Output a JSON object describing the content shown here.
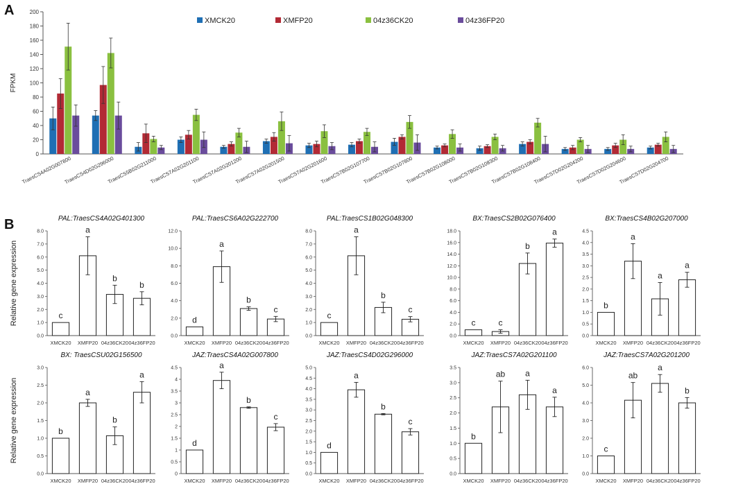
{
  "panels": {
    "a": "A",
    "b": "B"
  },
  "chart_data": [
    {
      "type": "bar",
      "ylabel": "FPKM",
      "ylim": [
        0,
        200
      ],
      "yticks": [
        0,
        20,
        40,
        60,
        80,
        100,
        120,
        140,
        160,
        180,
        200
      ],
      "legend_position": "top",
      "categories": [
        "TraesCS4A02G007800",
        "TraesCS4D02G296000",
        "TraesCS5B02G211000",
        "TraesCS7A02G201100",
        "TraesCS7A02G201200",
        "TraesCS7A02G201500",
        "TraesCS7A02G201600",
        "TraesCS7B02G107700",
        "TraesCS7B02G107800",
        "TraesCS7B02G108000",
        "TraesCS7B02G108300",
        "TraesCS7B02G108400",
        "TraesCS7D02G204200",
        "TraesCS7D02G204600",
        "TraesCS7D02G204700"
      ],
      "series": [
        {
          "name": "XMCK20",
          "color": "#1f6fb4",
          "values": [
            50,
            54,
            10,
            20,
            10,
            18,
            12,
            13,
            17,
            9,
            8,
            14,
            7,
            7,
            9
          ],
          "errors": [
            16,
            7,
            6,
            4,
            2,
            3,
            3,
            3,
            5,
            2,
            3,
            3,
            2,
            2,
            2
          ]
        },
        {
          "name": "XMFP20",
          "color": "#b22a35",
          "values": [
            85,
            97,
            29,
            27,
            14,
            24,
            14,
            18,
            24,
            12,
            11,
            17,
            9,
            12,
            13
          ],
          "errors": [
            21,
            26,
            13,
            6,
            3,
            6,
            4,
            3,
            3,
            2,
            2,
            3,
            3,
            3,
            2
          ]
        },
        {
          "name": "04z36CK20",
          "color": "#8ac040",
          "values": [
            151,
            142,
            21,
            55,
            30,
            46,
            32,
            31,
            45,
            28,
            24,
            44,
            20,
            20,
            24
          ],
          "errors": [
            33,
            21,
            4,
            8,
            6,
            13,
            9,
            5,
            9,
            6,
            4,
            6,
            3,
            7,
            7
          ]
        },
        {
          "name": "04z36FP20",
          "color": "#6a4c9c",
          "values": [
            54,
            54,
            9,
            20,
            10,
            15,
            11,
            10,
            16,
            9,
            8,
            14,
            7,
            7,
            7
          ],
          "errors": [
            15,
            19,
            3,
            11,
            8,
            11,
            5,
            7,
            11,
            5,
            4,
            11,
            5,
            4,
            5
          ]
        }
      ]
    },
    {
      "type": "bar",
      "title": "PAL:TraesCS4A02G401300",
      "ylabel": "Relative gene expression",
      "ylim": [
        0,
        8
      ],
      "yticks": [
        "0.0",
        "1.0",
        "2.0",
        "3.0",
        "4.0",
        "5.0",
        "6.0",
        "7.0",
        "8.0"
      ],
      "categories": [
        "XMCK20",
        "XMFP20",
        "04z36CK20",
        "04z36FP20"
      ],
      "values": [
        1.0,
        6.1,
        3.15,
        2.85
      ],
      "errors": [
        0,
        1.45,
        0.7,
        0.5
      ],
      "letters": [
        "c",
        "a",
        "b",
        "b"
      ]
    },
    {
      "type": "bar",
      "title": "PAL:TraesCS6A02G222700",
      "ylim": [
        0,
        12
      ],
      "yticks": [
        "0.0",
        "2.0",
        "4.0",
        "6.0",
        "8.0",
        "10.0",
        "12.0"
      ],
      "categories": [
        "XMCK20",
        "XMFP20",
        "04z36CK20",
        "04z36FP20"
      ],
      "values": [
        1.0,
        7.9,
        3.1,
        1.9
      ],
      "errors": [
        0,
        1.8,
        0.2,
        0.3
      ],
      "letters": [
        "d",
        "a",
        "b",
        "c"
      ]
    },
    {
      "type": "bar",
      "title": "PAL:TraesCS1B02G048300",
      "ylim": [
        0,
        8
      ],
      "yticks": [
        "0.0",
        "1.0",
        "2.0",
        "3.0",
        "4.0",
        "5.0",
        "6.0",
        "7.0",
        "8.0"
      ],
      "categories": [
        "XMCK20",
        "XMFP20",
        "04z36CK20",
        "04z36FP20"
      ],
      "values": [
        1.0,
        6.1,
        2.15,
        1.25
      ],
      "errors": [
        0,
        1.45,
        0.4,
        0.2
      ],
      "letters": [
        "c",
        "a",
        "b",
        "c"
      ]
    },
    {
      "type": "bar",
      "title": "BX:TraesCS2B02G076400",
      "ylim": [
        0,
        18
      ],
      "yticks": [
        "0.0",
        "2.0",
        "4.0",
        "6.0",
        "8.0",
        "10.0",
        "12.0",
        "14.0",
        "16.0",
        "18.0"
      ],
      "categories": [
        "XMCK20",
        "XMFP20",
        "04z36CK20",
        "04z36FP20"
      ],
      "values": [
        1.0,
        0.7,
        12.4,
        15.9
      ],
      "errors": [
        0,
        0.3,
        1.8,
        0.7
      ],
      "letters": [
        "c",
        "c",
        "b",
        "a"
      ]
    },
    {
      "type": "bar",
      "title": "BX:TraesCS4B02G207000",
      "ylim": [
        0,
        4.5
      ],
      "yticks": [
        "0.0",
        "0.5",
        "1.0",
        "1.5",
        "2.0",
        "2.5",
        "3.0",
        "3.5",
        "4.0",
        "4.5"
      ],
      "categories": [
        "XMCK20",
        "XMFP20",
        "04z36CK20",
        "04z36FP20"
      ],
      "values": [
        1.0,
        3.2,
        1.58,
        2.4
      ],
      "errors": [
        0,
        0.75,
        0.7,
        0.32
      ],
      "letters": [
        "b",
        "a",
        "a",
        "a"
      ]
    },
    {
      "type": "bar",
      "title": "BX: TraesCSU02G156500",
      "ylabel": "Relative gene expression",
      "ylim": [
        0,
        3.0
      ],
      "yticks": [
        "0.0",
        "0.5",
        "1.0",
        "1.5",
        "2.0",
        "2.5",
        "3.0"
      ],
      "categories": [
        "XMCK20",
        "XMFP20",
        "04z36CK20",
        "04z36FP20"
      ],
      "values": [
        1.0,
        2.0,
        1.07,
        2.3
      ],
      "errors": [
        0,
        0.1,
        0.25,
        0.3
      ],
      "letters": [
        "b",
        "a",
        "b",
        "a"
      ]
    },
    {
      "type": "bar",
      "title": "JAZ:TraesCS4A02G007800",
      "ylim": [
        0,
        4.5
      ],
      "yticks": [
        "0",
        "0.5",
        "1",
        "1.5",
        "2",
        "2.5",
        "3",
        "3.5",
        "4",
        "4.5"
      ],
      "categories": [
        "XMCK20",
        "XMFP20",
        "04z36CK20",
        "04z36FP20"
      ],
      "values": [
        1.0,
        3.95,
        2.8,
        1.97
      ],
      "errors": [
        0,
        0.35,
        0.03,
        0.15
      ],
      "letters": [
        "d",
        "a",
        "b",
        "c"
      ]
    },
    {
      "type": "bar",
      "title": "JAZ:TraesCS4D02G296000",
      "ylim": [
        0,
        5.0
      ],
      "yticks": [
        "0.0",
        "0.5",
        "1.0",
        "1.5",
        "2.0",
        "2.5",
        "3.0",
        "3.5",
        "4.0",
        "4.5",
        "5.0"
      ],
      "categories": [
        "XMCK20",
        "XMFP20",
        "04z36CK20",
        "04z36FP20"
      ],
      "values": [
        1.0,
        3.95,
        2.8,
        1.97
      ],
      "errors": [
        0,
        0.35,
        0.03,
        0.15
      ],
      "letters": [
        "d",
        "a",
        "b",
        "c"
      ]
    },
    {
      "type": "bar",
      "title": "JAZ:TraesCS7A02G201100",
      "ylim": [
        0,
        3.5
      ],
      "yticks": [
        "0.0",
        "0.5",
        "1.0",
        "1.5",
        "2.0",
        "2.5",
        "3.0",
        "3.5"
      ],
      "categories": [
        "XMCK20",
        "XMFP20",
        "04z36CK20",
        "04z36FP20"
      ],
      "values": [
        1.0,
        2.2,
        2.6,
        2.2
      ],
      "errors": [
        0,
        0.85,
        0.48,
        0.32
      ],
      "letters": [
        "b",
        "ab",
        "a",
        "a"
      ]
    },
    {
      "type": "bar",
      "title": "JAZ:TraesCS7A02G201200",
      "ylim": [
        0,
        6.0
      ],
      "yticks": [
        "0.0",
        "1.0",
        "2.0",
        "3.0",
        "4.0",
        "5.0",
        "6.0"
      ],
      "categories": [
        "XMCK20",
        "XMFP20",
        "04z36CK20",
        "04z36FP20"
      ],
      "values": [
        1.0,
        4.15,
        5.1,
        4.0
      ],
      "errors": [
        0,
        1.0,
        0.5,
        0.3
      ],
      "letters": [
        "c",
        "ab",
        "a",
        "b"
      ]
    }
  ]
}
